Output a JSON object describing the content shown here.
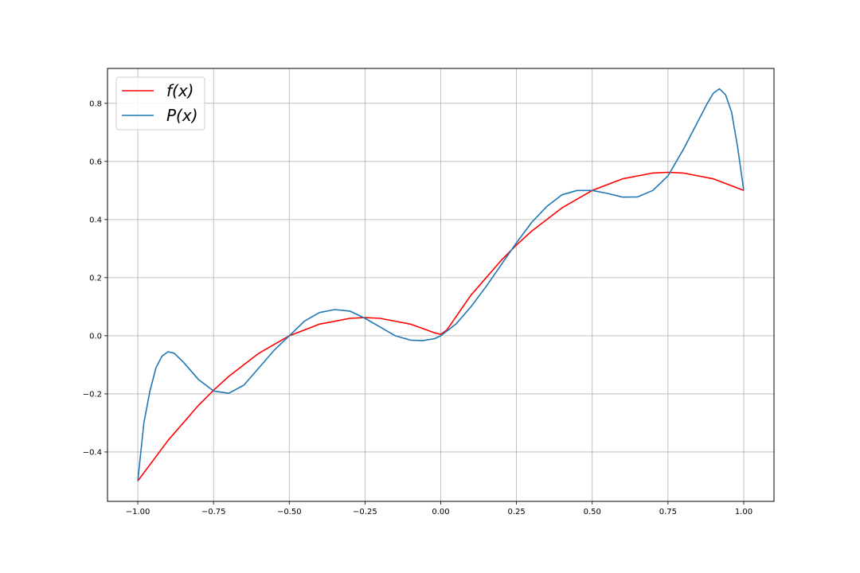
{
  "chart_data": {
    "type": "line",
    "title": "",
    "xlabel": "",
    "ylabel": "",
    "xlim": [
      -1.1,
      1.1
    ],
    "ylim": [
      -0.57,
      0.92
    ],
    "grid": true,
    "legend_position": "top-left",
    "xticks": [
      -1.0,
      -0.75,
      -0.5,
      -0.25,
      0.0,
      0.25,
      0.5,
      0.75,
      1.0
    ],
    "xtick_labels": [
      "−1.00",
      "−0.75",
      "−0.50",
      "−0.25",
      "0.00",
      "0.25",
      "0.50",
      "0.75",
      "1.00"
    ],
    "yticks": [
      -0.4,
      -0.2,
      0.0,
      0.2,
      0.4,
      0.6,
      0.8
    ],
    "ytick_labels": [
      "−0.4",
      "−0.2",
      "0.0",
      "0.2",
      "0.4",
      "0.6",
      "0.8"
    ],
    "series": [
      {
        "name": "f(x)",
        "color": "#ff0000",
        "x": [
          -1.0,
          -0.9,
          -0.8,
          -0.75,
          -0.7,
          -0.6,
          -0.5,
          -0.4,
          -0.3,
          -0.25,
          -0.2,
          -0.1,
          -0.02,
          0.0,
          0.02,
          0.1,
          0.2,
          0.25,
          0.3,
          0.4,
          0.5,
          0.6,
          0.7,
          0.75,
          0.8,
          0.9,
          1.0
        ],
        "y": [
          -0.5,
          -0.36,
          -0.24,
          -0.1875,
          -0.14,
          -0.06,
          0.0,
          0.04,
          0.06,
          0.0625,
          0.06,
          0.04,
          0.0098,
          0.005,
          0.0198,
          0.14,
          0.26,
          0.3125,
          0.36,
          0.44,
          0.5,
          0.54,
          0.56,
          0.5625,
          0.56,
          0.54,
          0.5
        ]
      },
      {
        "name": "P(x)",
        "color": "#1f77b4",
        "x": [
          -1.0,
          -0.98,
          -0.96,
          -0.94,
          -0.92,
          -0.9,
          -0.88,
          -0.85,
          -0.8,
          -0.75,
          -0.7,
          -0.65,
          -0.6,
          -0.55,
          -0.5,
          -0.45,
          -0.4,
          -0.35,
          -0.3,
          -0.25,
          -0.2,
          -0.15,
          -0.1,
          -0.06,
          -0.02,
          0.0,
          0.05,
          0.1,
          0.15,
          0.2,
          0.25,
          0.3,
          0.35,
          0.4,
          0.45,
          0.5,
          0.55,
          0.6,
          0.65,
          0.7,
          0.75,
          0.8,
          0.85,
          0.88,
          0.9,
          0.92,
          0.94,
          0.96,
          0.98,
          1.0
        ],
        "y": [
          -0.5,
          -0.3,
          -0.19,
          -0.11,
          -0.07,
          -0.055,
          -0.06,
          -0.09,
          -0.15,
          -0.19,
          -0.198,
          -0.17,
          -0.11,
          -0.05,
          0.0,
          0.05,
          0.08,
          0.09,
          0.085,
          0.06,
          0.03,
          0.0,
          -0.015,
          -0.017,
          -0.01,
          0.0,
          0.04,
          0.1,
          0.17,
          0.245,
          0.32,
          0.39,
          0.445,
          0.485,
          0.5,
          0.5,
          0.49,
          0.477,
          0.478,
          0.5,
          0.55,
          0.64,
          0.74,
          0.8,
          0.835,
          0.85,
          0.83,
          0.77,
          0.65,
          0.5
        ]
      }
    ]
  }
}
